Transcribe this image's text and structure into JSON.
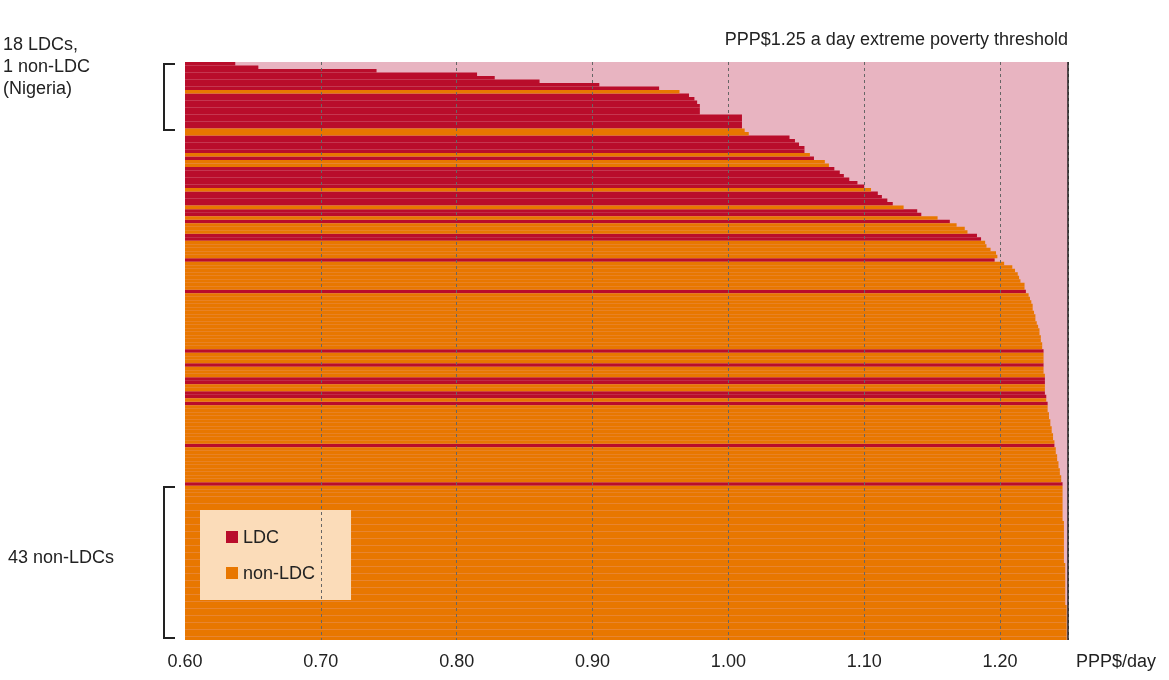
{
  "chart_data": {
    "type": "bar",
    "orientation": "horizontal",
    "categories": [
      null,
      null,
      null,
      null,
      null,
      null,
      null,
      null,
      null,
      null,
      null,
      null,
      null,
      null,
      null,
      null,
      null,
      null,
      null,
      null,
      null,
      null,
      null,
      null,
      null,
      null,
      null,
      null,
      null,
      null,
      null,
      null,
      null,
      null,
      null,
      null,
      null,
      null,
      null,
      null,
      null,
      null,
      null,
      null,
      null,
      null,
      null,
      null,
      null,
      null,
      null,
      null,
      null,
      null,
      null,
      null,
      null,
      null,
      null,
      null,
      null,
      null,
      null,
      null,
      null,
      null,
      null,
      null,
      null,
      null,
      null,
      null,
      null,
      null,
      null,
      null,
      null,
      null,
      null,
      null,
      null,
      null,
      null,
      null,
      null,
      null,
      null,
      null,
      null,
      null,
      null,
      null,
      null,
      null,
      null,
      null,
      null,
      null,
      null,
      null,
      null,
      null,
      null,
      null,
      null,
      null,
      null,
      null,
      null,
      null,
      null,
      null,
      null,
      null,
      null,
      null,
      null,
      null,
      null,
      null,
      null,
      null,
      null,
      null,
      null,
      null,
      null,
      null,
      null,
      null,
      null,
      null,
      null,
      null,
      null,
      null,
      null,
      null,
      null,
      null,
      null,
      null,
      null,
      null,
      null,
      null,
      null,
      null,
      null,
      null,
      null,
      null,
      null,
      null,
      null,
      null,
      null,
      null,
      null,
      null,
      null,
      null,
      null,
      null,
      null
    ],
    "series": [
      {
        "name": "LDC",
        "color": "#b90d2b",
        "values": [
          0.637,
          0.654,
          0.741,
          0.815,
          0.828,
          0.861,
          0.905,
          0.949,
          null,
          0.971,
          0.975,
          0.977,
          0.979,
          0.979,
          0.979,
          1.01,
          1.01,
          1.01,
          1.01,
          null,
          null,
          1.045,
          1.049,
          1.052,
          1.056,
          1.056,
          null,
          1.063,
          null,
          null,
          1.078,
          1.082,
          1.085,
          1.089,
          1.095,
          1.1,
          null,
          1.11,
          1.113,
          1.117,
          1.121,
          null,
          1.139,
          1.142,
          null,
          1.163,
          null,
          null,
          null,
          1.183,
          1.186,
          null,
          null,
          null,
          null,
          null,
          1.196,
          null,
          null,
          null,
          null,
          null,
          null,
          null,
          null,
          1.219,
          null,
          null,
          null,
          null,
          null,
          null,
          null,
          null,
          null,
          null,
          null,
          null,
          null,
          null,
          null,
          null,
          1.232,
          null,
          null,
          null,
          1.232,
          null,
          null,
          null,
          1.233,
          1.233,
          null,
          null,
          1.233,
          1.234,
          null,
          1.235,
          null,
          null,
          null,
          null,
          null,
          null,
          null,
          null,
          null,
          null,
          null,
          1.24,
          null,
          null,
          null,
          null,
          null,
          null,
          null,
          null,
          null,
          null,
          1.246,
          null,
          null,
          null,
          null,
          null,
          null,
          null,
          null,
          null,
          null,
          null,
          null,
          null,
          null,
          null,
          null,
          null,
          null,
          null,
          null,
          null,
          null,
          null,
          null,
          null,
          null,
          null,
          null,
          null,
          null,
          null,
          null,
          null,
          null,
          null,
          null,
          null,
          null,
          null,
          null,
          null,
          null,
          null,
          null
        ]
      },
      {
        "name": "non-LDC",
        "color": "#e87700",
        "values": [
          null,
          null,
          null,
          null,
          null,
          null,
          null,
          null,
          0.964,
          null,
          null,
          null,
          null,
          null,
          null,
          null,
          null,
          null,
          null,
          1.012,
          1.015,
          null,
          null,
          null,
          null,
          null,
          1.06,
          null,
          1.071,
          1.074,
          null,
          null,
          null,
          null,
          null,
          null,
          1.105,
          null,
          null,
          null,
          null,
          1.129,
          null,
          null,
          1.154,
          null,
          1.168,
          1.174,
          1.176,
          null,
          null,
          1.189,
          1.19,
          1.193,
          1.197,
          1.198,
          null,
          1.203,
          1.209,
          1.211,
          1.213,
          1.214,
          1.215,
          1.218,
          1.218,
          null,
          1.221,
          1.222,
          1.223,
          1.224,
          1.224,
          1.225,
          1.226,
          1.226,
          1.227,
          1.228,
          1.229,
          1.229,
          1.23,
          1.23,
          1.231,
          1.231,
          null,
          1.232,
          1.232,
          1.232,
          null,
          1.232,
          1.232,
          1.233,
          null,
          null,
          1.233,
          1.233,
          null,
          null,
          1.234,
          null,
          1.235,
          1.235,
          1.236,
          1.236,
          1.237,
          1.237,
          1.238,
          1.238,
          1.239,
          1.239,
          1.24,
          null,
          1.241,
          1.241,
          1.242,
          1.242,
          1.243,
          1.243,
          1.244,
          1.244,
          1.245,
          1.245,
          null,
          1.246,
          1.246,
          1.246,
          1.246,
          1.246,
          1.246,
          1.246,
          1.246,
          1.246,
          1.246,
          1.247,
          1.247,
          1.247,
          1.247,
          1.247,
          1.247,
          1.247,
          1.247,
          1.247,
          1.247,
          1.247,
          1.247,
          1.248,
          1.248,
          1.248,
          1.248,
          1.248,
          1.248,
          1.248,
          1.248,
          1.248,
          1.248,
          1.248,
          1.248,
          1.249,
          1.249,
          1.249,
          1.249,
          1.249,
          1.249,
          1.249,
          1.249,
          1.249,
          1.249
        ]
      }
    ],
    "xlabel": "PPP$/day",
    "xlim": [
      0.6,
      1.25
    ],
    "xticks": [
      {
        "value": 0.6,
        "label": "0.60"
      },
      {
        "value": 0.7,
        "label": "0.70"
      },
      {
        "value": 0.8,
        "label": "0.80"
      },
      {
        "value": 0.9,
        "label": "0.90"
      },
      {
        "value": 1.0,
        "label": "1.00"
      },
      {
        "value": 1.1,
        "label": "1.10"
      },
      {
        "value": 1.2,
        "label": "1.20"
      }
    ],
    "tick_labels": "x",
    "grid": "x",
    "legend": "bottom left",
    "ref_lines": [
      {
        "axis": "x",
        "value": 1.25,
        "label": "PPP$1.25 a day extreme poverty threshold"
      }
    ],
    "bands": [
      {
        "axis": "x",
        "from": 0.6,
        "to": 1.25,
        "color": "#e8b4c1"
      }
    ],
    "annotations": [
      "18 LDCs,\n1 non-LDC\n(Nigeria)",
      "43 non-LDCs"
    ]
  }
}
